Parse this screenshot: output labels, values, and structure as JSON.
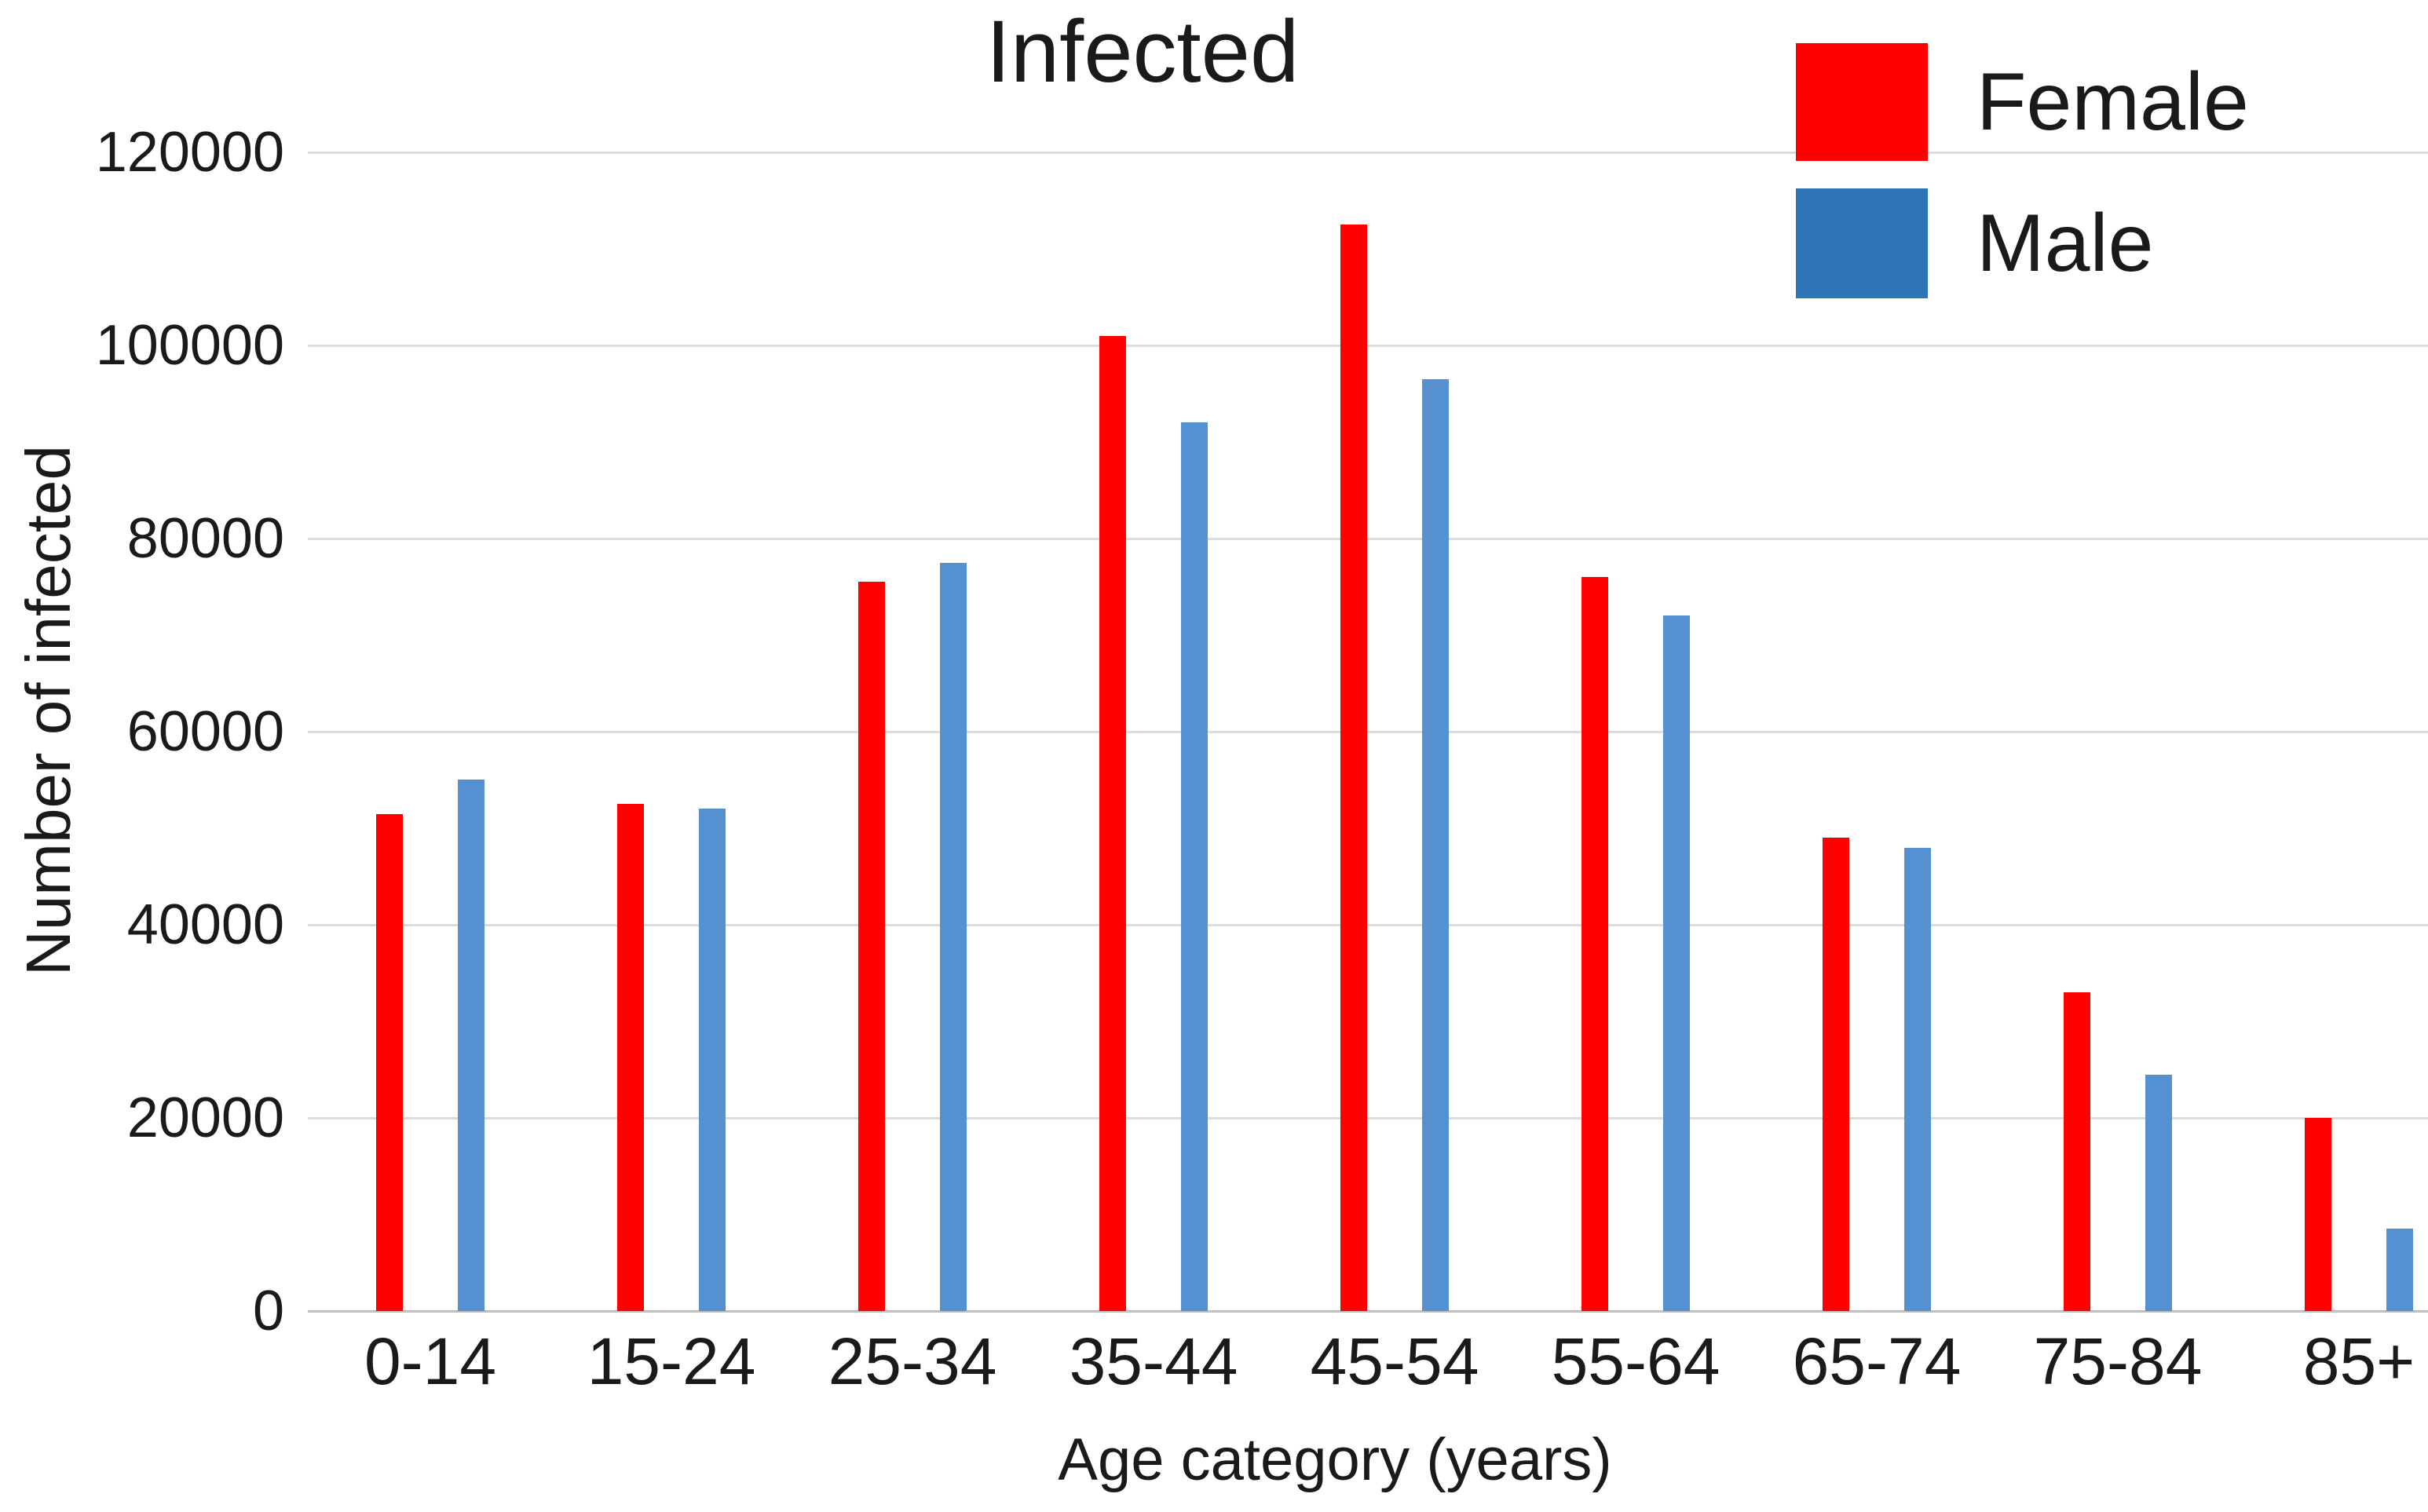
{
  "title": "Infected",
  "legend": {
    "items": [
      {
        "label": "Female",
        "color": "#ff0000"
      },
      {
        "label": "Male",
        "color": "#2e75b6"
      }
    ]
  },
  "axes": {
    "y_title": "Number of infected",
    "x_title": "Age category (years)"
  },
  "colors": {
    "female_bar": "#ff0000",
    "male_bar": "#5591d0",
    "gridline": "#dcdcdc",
    "axis_line": "#bfbfbf",
    "text": "#1a1a1a"
  },
  "chart_data": {
    "type": "bar",
    "title": "Infected",
    "categories": [
      "0-14",
      "15-24",
      "25-34",
      "35-44",
      "45-54",
      "55-64",
      "65-74",
      "75-84",
      "85+"
    ],
    "series": [
      {
        "name": "Female",
        "color": "#ff0000",
        "values": [
          51500,
          52500,
          75500,
          101000,
          112500,
          76000,
          49000,
          33000,
          20000
        ]
      },
      {
        "name": "Male",
        "color": "#5591d0",
        "values": [
          55000,
          52000,
          77500,
          92000,
          96500,
          72000,
          48000,
          24500,
          8500
        ]
      }
    ],
    "xlabel": "Age category (years)",
    "ylabel": "Number of infected",
    "ylim": [
      0,
      120000
    ],
    "yticks": [
      0,
      20000,
      40000,
      60000,
      80000,
      100000,
      120000
    ],
    "grid": true,
    "legend_position": "top-right"
  }
}
